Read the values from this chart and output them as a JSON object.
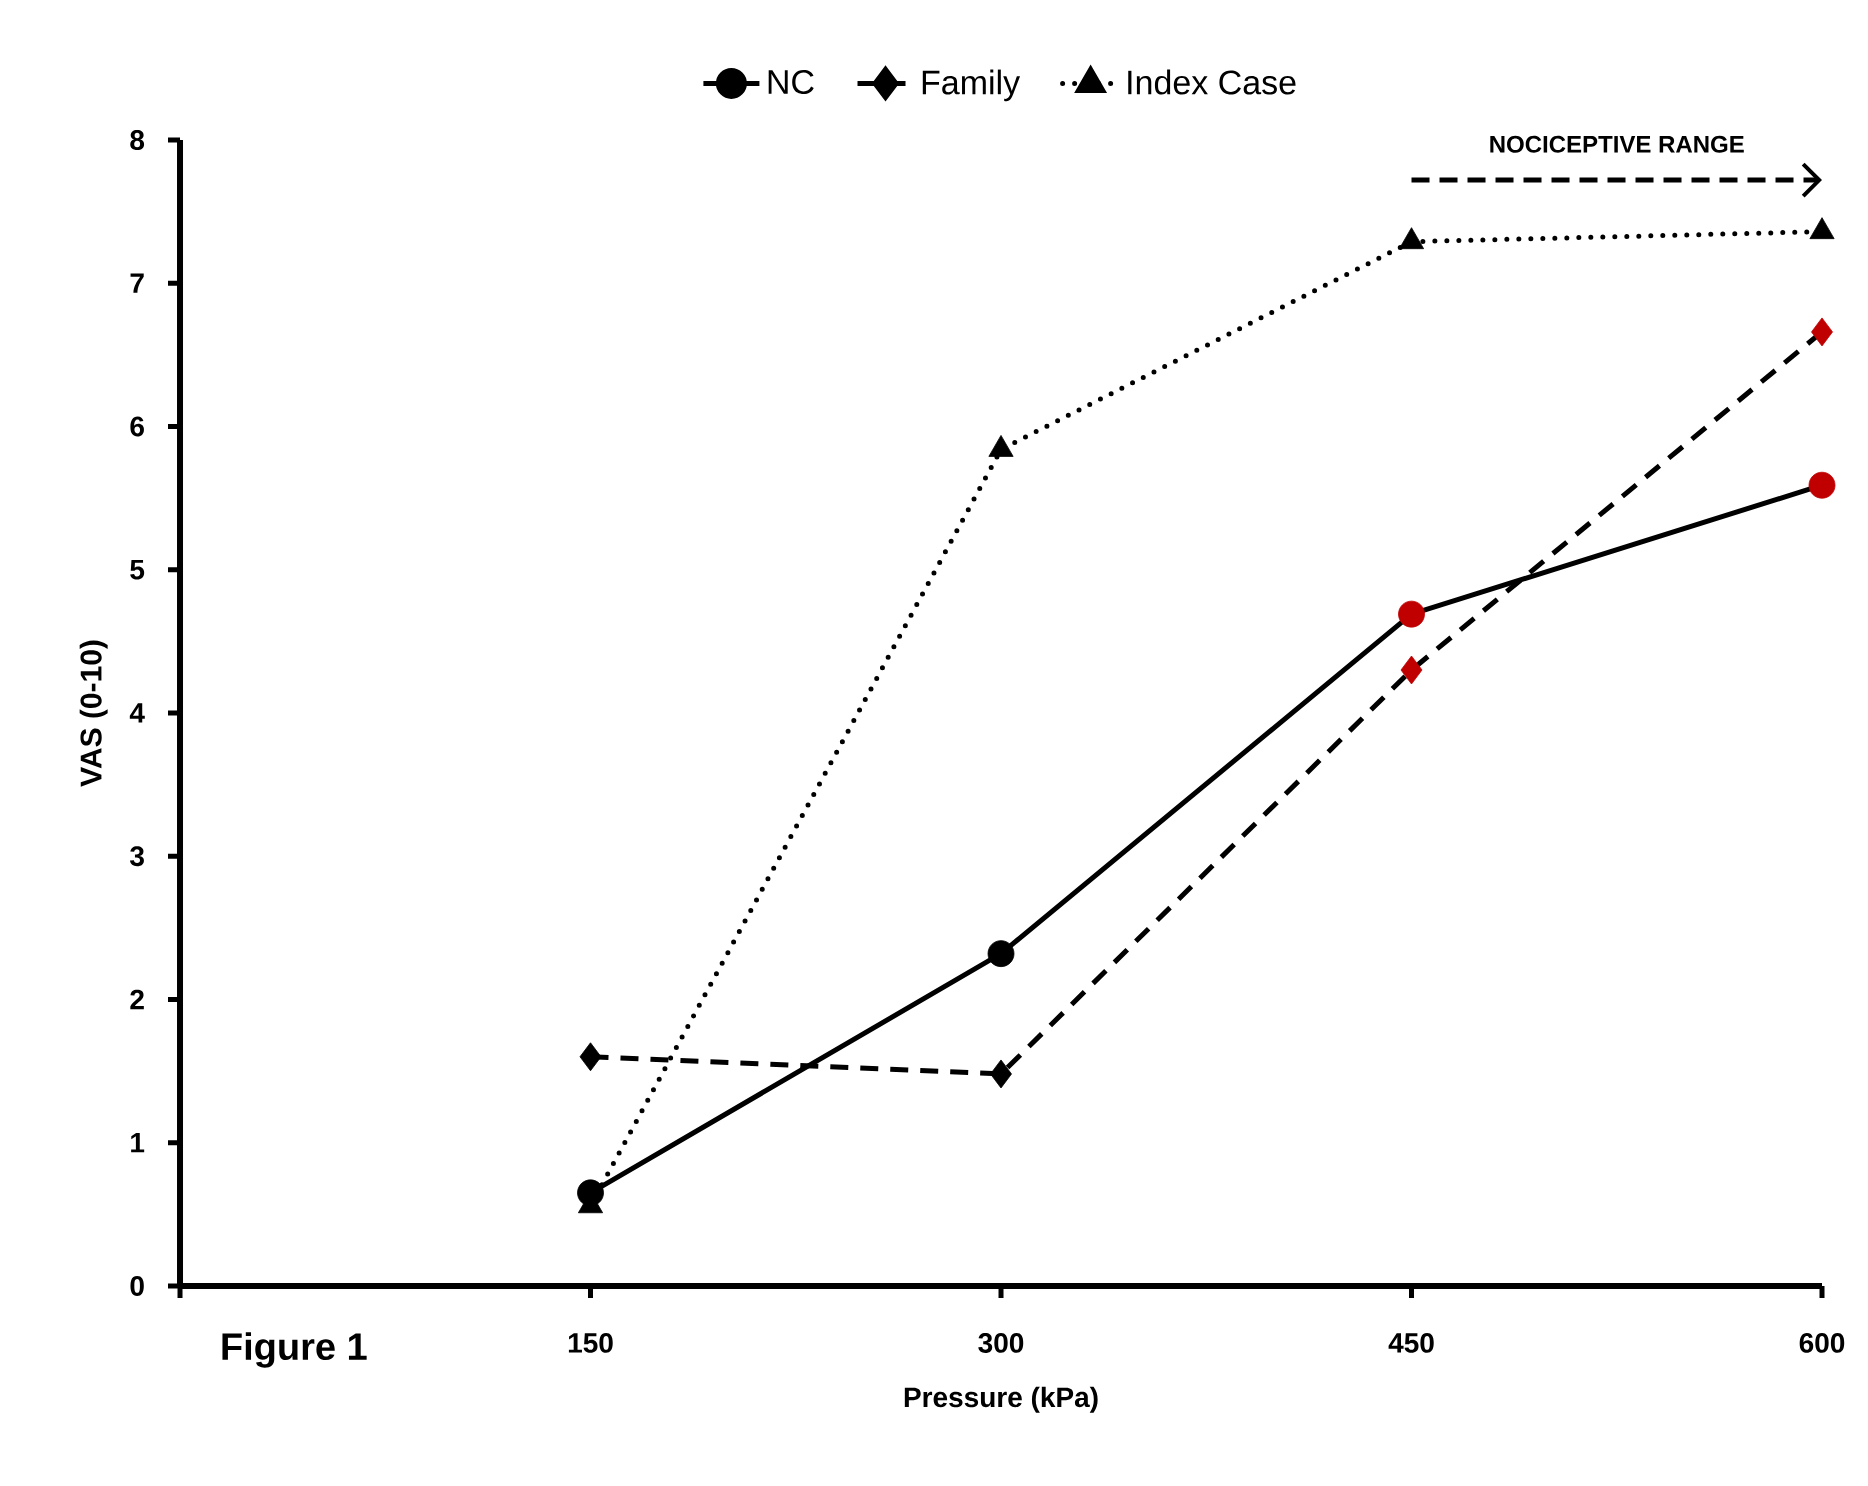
{
  "chart_data": {
    "type": "line",
    "xlabel": "Pressure (kPa)",
    "ylabel": "VAS (0-10)",
    "x": [
      150,
      300,
      450,
      600
    ],
    "xlim": [
      0,
      600
    ],
    "ylim": [
      0,
      8
    ],
    "xticks": [
      {
        "value": 0,
        "label": null
      },
      150,
      300,
      450,
      600
    ],
    "yticks": [
      0,
      1,
      2,
      3,
      4,
      5,
      6,
      7,
      8
    ],
    "legend": "top",
    "grid": false,
    "series": [
      {
        "name": "NC",
        "color": "#000000",
        "colors": [
          "#000000",
          "#000000",
          "#c00000",
          "#c00000"
        ],
        "marker": "circle",
        "line_style": "solid",
        "values": [
          0.65,
          2.32,
          4.69,
          5.59
        ]
      },
      {
        "name": "Family",
        "color": "#000000",
        "colors": [
          "#000000",
          "#000000",
          "#c00000",
          "#c00000"
        ],
        "marker": "diamond",
        "line_style": "dashed",
        "values": [
          1.6,
          1.48,
          4.3,
          6.66
        ]
      },
      {
        "name": "Index Case",
        "color": "#000000",
        "colors": [
          "#000000",
          "#000000",
          "#000000",
          "#000000"
        ],
        "marker": "triangle",
        "line_style": "dotted",
        "values": [
          0.56,
          5.84,
          7.29,
          7.36
        ]
      }
    ],
    "annotations": [
      "NOCICEPTIVE RANGE",
      "Figure 1"
    ]
  }
}
